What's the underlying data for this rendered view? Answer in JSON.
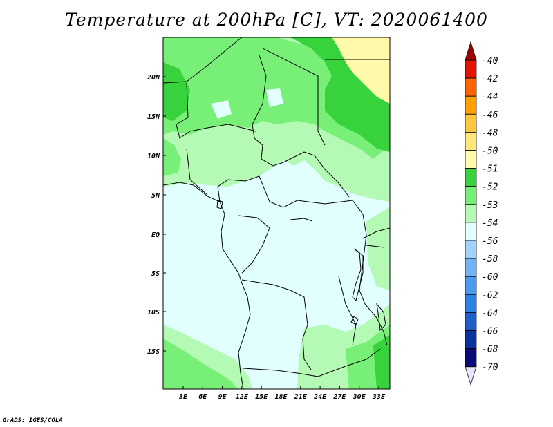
{
  "title": "Temperature at 200hPa [C], VT: 2020061400",
  "credit": "GrADS: IGES/COLA",
  "map": {
    "lat_labels": [
      "20N",
      "15N",
      "10N",
      "5N",
      "EQ",
      "5S",
      "10S",
      "15S"
    ],
    "lon_labels": [
      "3E",
      "6E",
      "9E",
      "12E",
      "15E",
      "18E",
      "21E",
      "24E",
      "27E",
      "30E",
      "33E"
    ]
  },
  "colorbar": {
    "labels": [
      "-40",
      "-42",
      "-44",
      "-46",
      "-48",
      "-50",
      "-51",
      "-52",
      "-53",
      "-54",
      "-56",
      "-58",
      "-60",
      "-62",
      "-64",
      "-66",
      "-68",
      "-70"
    ],
    "colors": [
      "#e6e6ff",
      "#0a0a78",
      "#0a32a0",
      "#1e5fc8",
      "#2d82e6",
      "#4b9bf0",
      "#73b4f5",
      "#a0d2fa",
      "#e1ffff",
      "#b4fab4",
      "#78f078",
      "#37d23c",
      "#fffaaa",
      "#ffe678",
      "#ffc83c",
      "#ffa000",
      "#ff6400",
      "#e11400",
      "#a50000"
    ]
  },
  "shading_colors": {
    "cool": "#e1ffff",
    "pale_green": "#b4fab4",
    "green": "#78f078",
    "dark_green": "#37d23c",
    "yellow": "#fffaaa"
  }
}
